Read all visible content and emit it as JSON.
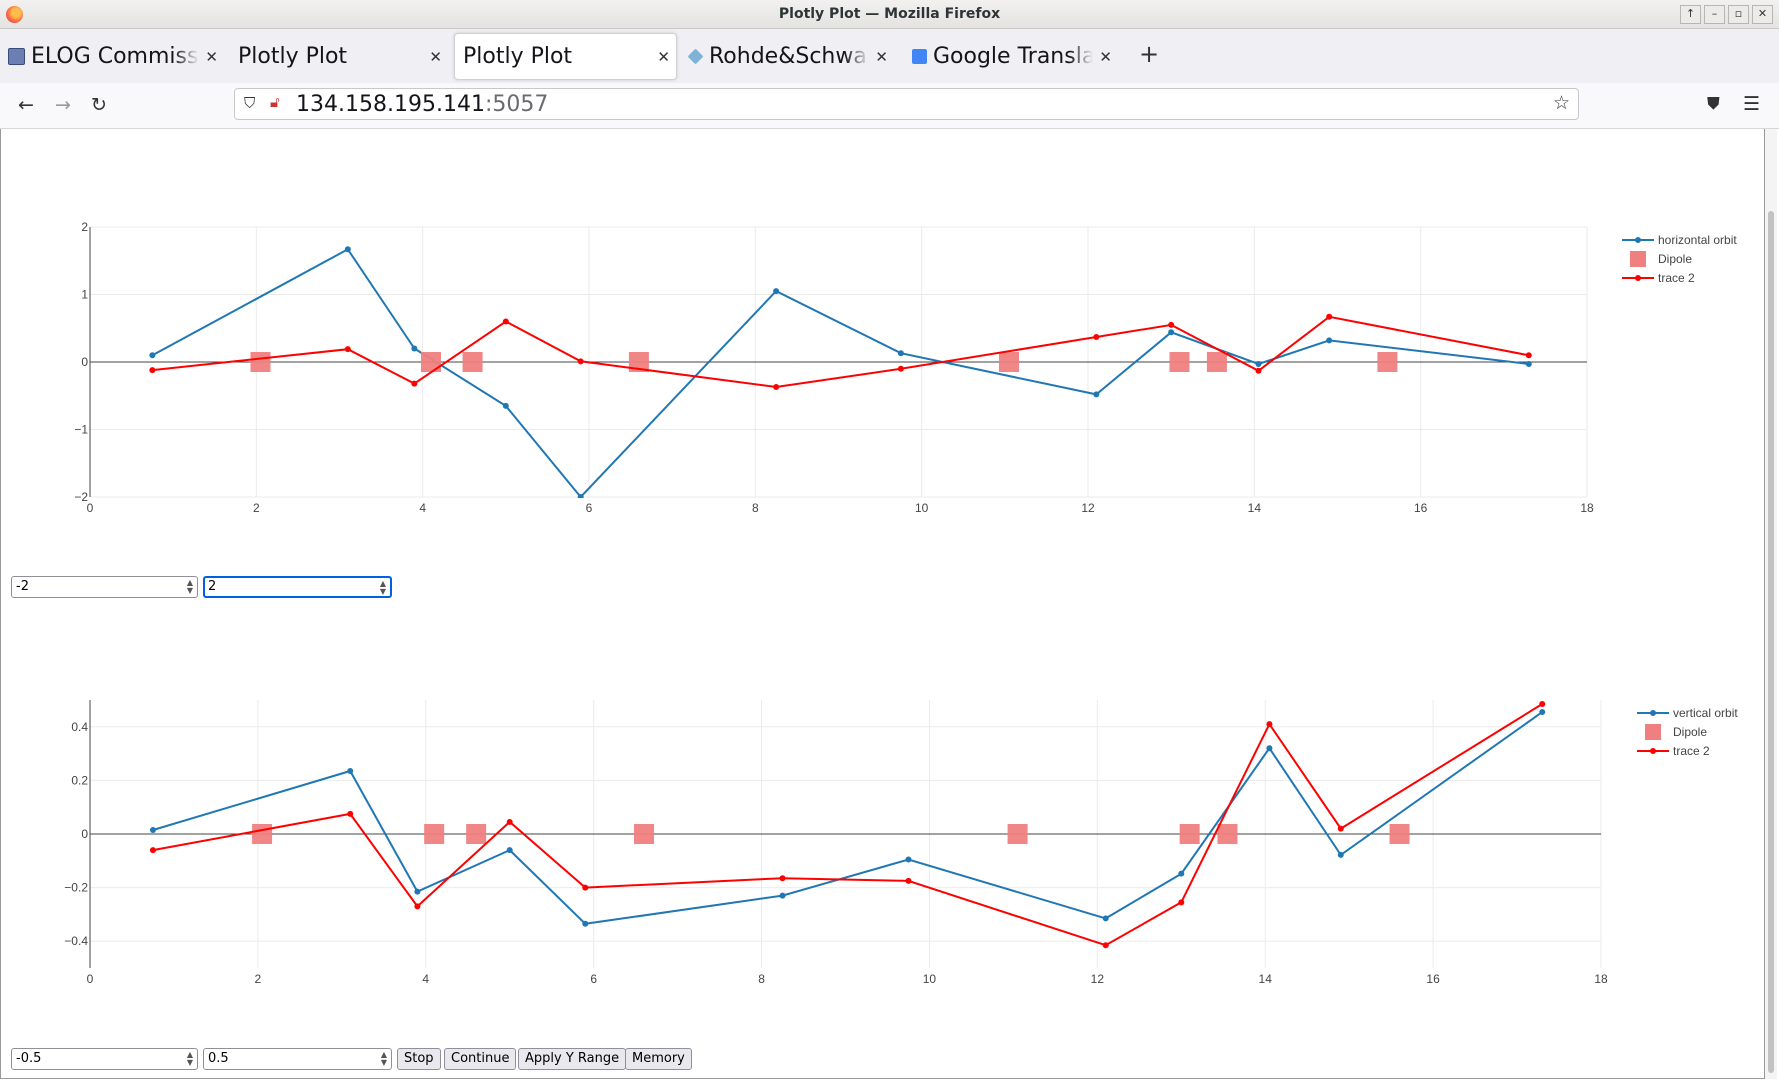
{
  "window": {
    "title": "Plotly Plot — Mozilla Firefox"
  },
  "tabs": [
    {
      "label": "ELOG Commissioning",
      "active": false,
      "favicon": "elog-icon"
    },
    {
      "label": "Plotly Plot",
      "active": false,
      "favicon": ""
    },
    {
      "label": "Plotly Plot",
      "active": true,
      "favicon": ""
    },
    {
      "label": "Rohde&Schwarz",
      "active": false,
      "favicon": "rs-icon"
    },
    {
      "label": "Google Translate",
      "active": false,
      "favicon": "translate-icon"
    }
  ],
  "navbar": {
    "url_host": "134.158.195.141",
    "url_port": ":5057"
  },
  "controls_top": {
    "ymin_value": "-2",
    "ymax_value": "2"
  },
  "controls_bottom": {
    "ymin_value": "-0.5",
    "ymax_value": "0.5",
    "stop_label": "Stop",
    "continue_label": "Continue",
    "apply_label": "Apply Y Range",
    "memory_label": "Memory"
  },
  "colors": {
    "orbit": "#1f77b4",
    "dipole": "#f08080",
    "trace2": "#ff0000"
  },
  "chart_data": [
    {
      "type": "line",
      "xlim": [
        0,
        18
      ],
      "ylim": [
        -2,
        2
      ],
      "xticks": [
        0,
        2,
        4,
        6,
        8,
        10,
        12,
        14,
        16,
        18
      ],
      "yticks": [
        -2,
        -1,
        0,
        1,
        2
      ],
      "ytick_labels": [
        "−2",
        "−1",
        "0",
        "1",
        "2"
      ],
      "legend_position": "top-right",
      "series": [
        {
          "name": "horizontal orbit",
          "mode": "lines+markers",
          "x": [
            0.75,
            3.1,
            3.9,
            5.0,
            5.9,
            8.25,
            9.75,
            12.1,
            13.0,
            14.05,
            14.9,
            17.3
          ],
          "y": [
            0.1,
            1.67,
            0.2,
            -0.65,
            -2.0,
            1.05,
            0.13,
            -0.48,
            0.44,
            -0.03,
            0.32,
            -0.03
          ]
        },
        {
          "name": "Dipole",
          "mode": "markers",
          "x": [
            2.05,
            4.1,
            4.6,
            6.6,
            11.05,
            13.1,
            13.55,
            15.6
          ],
          "y": [
            0,
            0,
            0,
            0,
            0,
            0,
            0,
            0
          ]
        },
        {
          "name": "trace 2",
          "mode": "lines+markers",
          "x": [
            0.75,
            3.1,
            3.9,
            5.0,
            5.9,
            8.25,
            9.75,
            12.1,
            13.0,
            14.05,
            14.9,
            17.3
          ],
          "y": [
            -0.12,
            0.19,
            -0.32,
            0.6,
            0.01,
            -0.37,
            -0.1,
            0.37,
            0.55,
            -0.13,
            0.67,
            0.1
          ]
        }
      ]
    },
    {
      "type": "line",
      "xlim": [
        0,
        18
      ],
      "ylim": [
        -0.5,
        0.5
      ],
      "xticks": [
        0,
        2,
        4,
        6,
        8,
        10,
        12,
        14,
        16,
        18
      ],
      "yticks": [
        -0.4,
        -0.2,
        0,
        0.2,
        0.4
      ],
      "ytick_labels": [
        "−0.4",
        "−0.2",
        "0",
        "0.2",
        "0.4"
      ],
      "legend_position": "top-right",
      "series": [
        {
          "name": "vertical orbit",
          "mode": "lines+markers",
          "x": [
            0.75,
            3.1,
            3.9,
            5.0,
            5.9,
            8.25,
            9.75,
            12.1,
            13.0,
            14.05,
            14.9,
            17.3
          ],
          "y": [
            0.015,
            0.235,
            -0.215,
            -0.06,
            -0.335,
            -0.23,
            -0.095,
            -0.315,
            -0.148,
            0.32,
            -0.078,
            0.455
          ]
        },
        {
          "name": "Dipole",
          "mode": "markers",
          "x": [
            2.05,
            4.1,
            4.6,
            6.6,
            11.05,
            13.1,
            13.55,
            15.6
          ],
          "y": [
            0,
            0,
            0,
            0,
            0,
            0,
            0,
            0
          ]
        },
        {
          "name": "trace 2",
          "mode": "lines+markers",
          "x": [
            0.75,
            3.1,
            3.9,
            5.0,
            5.9,
            8.25,
            9.75,
            12.1,
            13.0,
            14.05,
            14.9,
            17.3
          ],
          "y": [
            -0.06,
            0.075,
            -0.27,
            0.045,
            -0.2,
            -0.165,
            -0.175,
            -0.415,
            -0.255,
            0.41,
            0.02,
            0.485
          ]
        }
      ]
    }
  ]
}
